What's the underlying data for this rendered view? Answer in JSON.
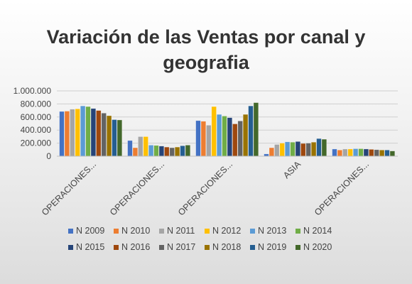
{
  "chart_data": {
    "type": "bar",
    "title": "Variación de las Ventas por canal y geografia",
    "categories": [
      "OPERACIONES...",
      "OPERACIONES...",
      "OPERACIONES...",
      "ASIA",
      "OPERACIONES..."
    ],
    "y_tick_labels": [
      "0",
      "200.000",
      "400.000",
      "600.000",
      "800.000",
      "1.000.000"
    ],
    "ylim": [
      0,
      1000000
    ],
    "grid": true,
    "legend_position": "bottom",
    "series": [
      {
        "name": "N 2009",
        "color": "#4472c4",
        "values": [
          685000,
          240000,
          545000,
          35000,
          110000
        ]
      },
      {
        "name": "N 2010",
        "color": "#ed7d31",
        "values": [
          690000,
          130000,
          535000,
          130000,
          95000
        ]
      },
      {
        "name": "N 2011",
        "color": "#a5a5a5",
        "values": [
          720000,
          300000,
          475000,
          180000,
          110000
        ]
      },
      {
        "name": "N 2012",
        "color": "#ffc000",
        "values": [
          725000,
          300000,
          760000,
          200000,
          110000
        ]
      },
      {
        "name": "N 2013",
        "color": "#5b9bd5",
        "values": [
          770000,
          170000,
          640000,
          220000,
          115000
        ]
      },
      {
        "name": "N 2014",
        "color": "#70ad47",
        "values": [
          760000,
          165000,
          615000,
          215000,
          115000
        ]
      },
      {
        "name": "N 2015",
        "color": "#264478",
        "values": [
          730000,
          155000,
          590000,
          225000,
          110000
        ]
      },
      {
        "name": "N 2016",
        "color": "#9e480e",
        "values": [
          700000,
          140000,
          495000,
          195000,
          105000
        ]
      },
      {
        "name": "N 2017",
        "color": "#636363",
        "values": [
          660000,
          130000,
          540000,
          200000,
          100000
        ]
      },
      {
        "name": "N 2018",
        "color": "#997300",
        "values": [
          620000,
          140000,
          640000,
          215000,
          95000
        ]
      },
      {
        "name": "N 2019",
        "color": "#255e91",
        "values": [
          560000,
          160000,
          770000,
          270000,
          95000
        ]
      },
      {
        "name": "N 2020",
        "color": "#43682b",
        "values": [
          555000,
          170000,
          820000,
          260000,
          80000
        ]
      }
    ]
  }
}
